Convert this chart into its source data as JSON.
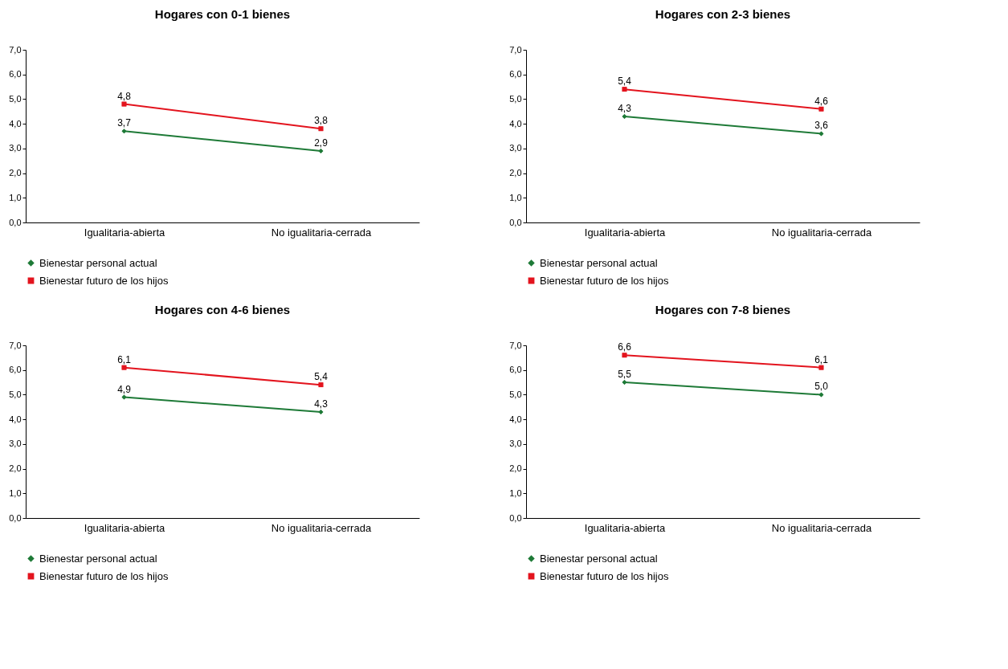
{
  "chart_data": [
    {
      "type": "line",
      "title": "Hogares con 0-1 bienes",
      "categories": [
        "Igualitaria-abierta",
        "No igualitaria-cerrada"
      ],
      "ylim": [
        0,
        7
      ],
      "yticks": [
        {
          "value": 0,
          "label": "0,0"
        },
        {
          "value": 1,
          "label": "1,0"
        },
        {
          "value": 2,
          "label": "2,0"
        },
        {
          "value": 3,
          "label": "3,0"
        },
        {
          "value": 4,
          "label": "4,0"
        },
        {
          "value": 5,
          "label": "5,0"
        },
        {
          "value": 6,
          "label": "6,0"
        },
        {
          "value": 7,
          "label": "7,0"
        }
      ],
      "grid": false,
      "legend": "bottom",
      "series": [
        {
          "name": "Bienestar personal actual",
          "color": "#1e7a37",
          "marker": "diamond",
          "values": [
            3.7,
            2.9
          ],
          "value_labels": [
            "3,7",
            "2,9"
          ]
        },
        {
          "name": "Bienestar futuro de los hijos",
          "color": "#e3141e",
          "marker": "square",
          "values": [
            4.8,
            3.8
          ],
          "value_labels": [
            "4,8",
            "3,8"
          ]
        }
      ]
    },
    {
      "type": "line",
      "title": "Hogares con 2-3 bienes",
      "categories": [
        "Igualitaria-abierta",
        "No igualitaria-cerrada"
      ],
      "ylim": [
        0,
        7
      ],
      "yticks": [
        {
          "value": 0,
          "label": "0,0"
        },
        {
          "value": 1,
          "label": "1,0"
        },
        {
          "value": 2,
          "label": "2,0"
        },
        {
          "value": 3,
          "label": "3,0"
        },
        {
          "value": 4,
          "label": "4,0"
        },
        {
          "value": 5,
          "label": "5,0"
        },
        {
          "value": 6,
          "label": "6,0"
        },
        {
          "value": 7,
          "label": "7,0"
        }
      ],
      "grid": false,
      "legend": "bottom",
      "series": [
        {
          "name": "Bienestar personal actual",
          "color": "#1e7a37",
          "marker": "diamond",
          "values": [
            4.3,
            3.6
          ],
          "value_labels": [
            "4,3",
            "3,6"
          ]
        },
        {
          "name": "Bienestar futuro de los hijos",
          "color": "#e3141e",
          "marker": "square",
          "values": [
            5.4,
            4.6
          ],
          "value_labels": [
            "5,4",
            "4,6"
          ]
        }
      ]
    },
    {
      "type": "line",
      "title": "Hogares con 4-6 bienes",
      "categories": [
        "Igualitaria-abierta",
        "No igualitaria-cerrada"
      ],
      "ylim": [
        0,
        7
      ],
      "yticks": [
        {
          "value": 0,
          "label": "0,0"
        },
        {
          "value": 1,
          "label": "1,0"
        },
        {
          "value": 2,
          "label": "2,0"
        },
        {
          "value": 3,
          "label": "3,0"
        },
        {
          "value": 4,
          "label": "4,0"
        },
        {
          "value": 5,
          "label": "5,0"
        },
        {
          "value": 6,
          "label": "6,0"
        },
        {
          "value": 7,
          "label": "7,0"
        }
      ],
      "grid": false,
      "legend": "bottom",
      "series": [
        {
          "name": "Bienestar personal actual",
          "color": "#1e7a37",
          "marker": "diamond",
          "values": [
            4.9,
            4.3
          ],
          "value_labels": [
            "4,9",
            "4,3"
          ]
        },
        {
          "name": "Bienestar futuro de los hijos",
          "color": "#e3141e",
          "marker": "square",
          "values": [
            6.1,
            5.4
          ],
          "value_labels": [
            "6,1",
            "5,4"
          ]
        }
      ]
    },
    {
      "type": "line",
      "title": "Hogares con 7-8 bienes",
      "categories": [
        "Igualitaria-abierta",
        "No igualitaria-cerrada"
      ],
      "ylim": [
        0,
        7
      ],
      "yticks": [
        {
          "value": 0,
          "label": "0,0"
        },
        {
          "value": 1,
          "label": "1,0"
        },
        {
          "value": 2,
          "label": "2,0"
        },
        {
          "value": 3,
          "label": "3,0"
        },
        {
          "value": 4,
          "label": "4,0"
        },
        {
          "value": 5,
          "label": "5,0"
        },
        {
          "value": 6,
          "label": "6,0"
        },
        {
          "value": 7,
          "label": "7,0"
        }
      ],
      "grid": false,
      "legend": "bottom",
      "series": [
        {
          "name": "Bienestar personal actual",
          "color": "#1e7a37",
          "marker": "diamond",
          "values": [
            5.5,
            5.0
          ],
          "value_labels": [
            "5,5",
            "5,0"
          ]
        },
        {
          "name": "Bienestar futuro de los hijos",
          "color": "#e3141e",
          "marker": "square",
          "values": [
            6.6,
            6.1
          ],
          "value_labels": [
            "6,6",
            "6,1"
          ]
        }
      ]
    }
  ]
}
